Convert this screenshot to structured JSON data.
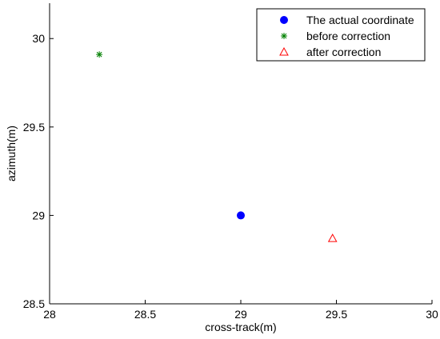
{
  "chart_data": {
    "type": "scatter",
    "xlabel": "cross-track(m)",
    "ylabel": "azimuth(m)",
    "xlim": [
      28,
      30
    ],
    "ylim": [
      28.5,
      30.2
    ],
    "xticks": [
      28,
      28.5,
      29,
      29.5,
      30
    ],
    "yticks": [
      28.5,
      29,
      29.5,
      30
    ],
    "xtick_labels": [
      "28",
      "28.5",
      "29",
      "29.5",
      "30"
    ],
    "ytick_labels": [
      "28.5",
      "29",
      "29.5",
      "30"
    ],
    "grid": false,
    "legend_position": "top-right",
    "series": [
      {
        "name": "The actual coordinate",
        "marker": "filled-circle",
        "color": "#0000ff",
        "points": [
          {
            "x": 29.0,
            "y": 29.0
          }
        ]
      },
      {
        "name": "before correction",
        "marker": "asterisk",
        "color": "#008000",
        "points": [
          {
            "x": 28.26,
            "y": 29.91
          }
        ]
      },
      {
        "name": "after correction",
        "marker": "triangle",
        "color": "#ff0000",
        "points": [
          {
            "x": 29.48,
            "y": 28.87
          }
        ]
      }
    ]
  }
}
